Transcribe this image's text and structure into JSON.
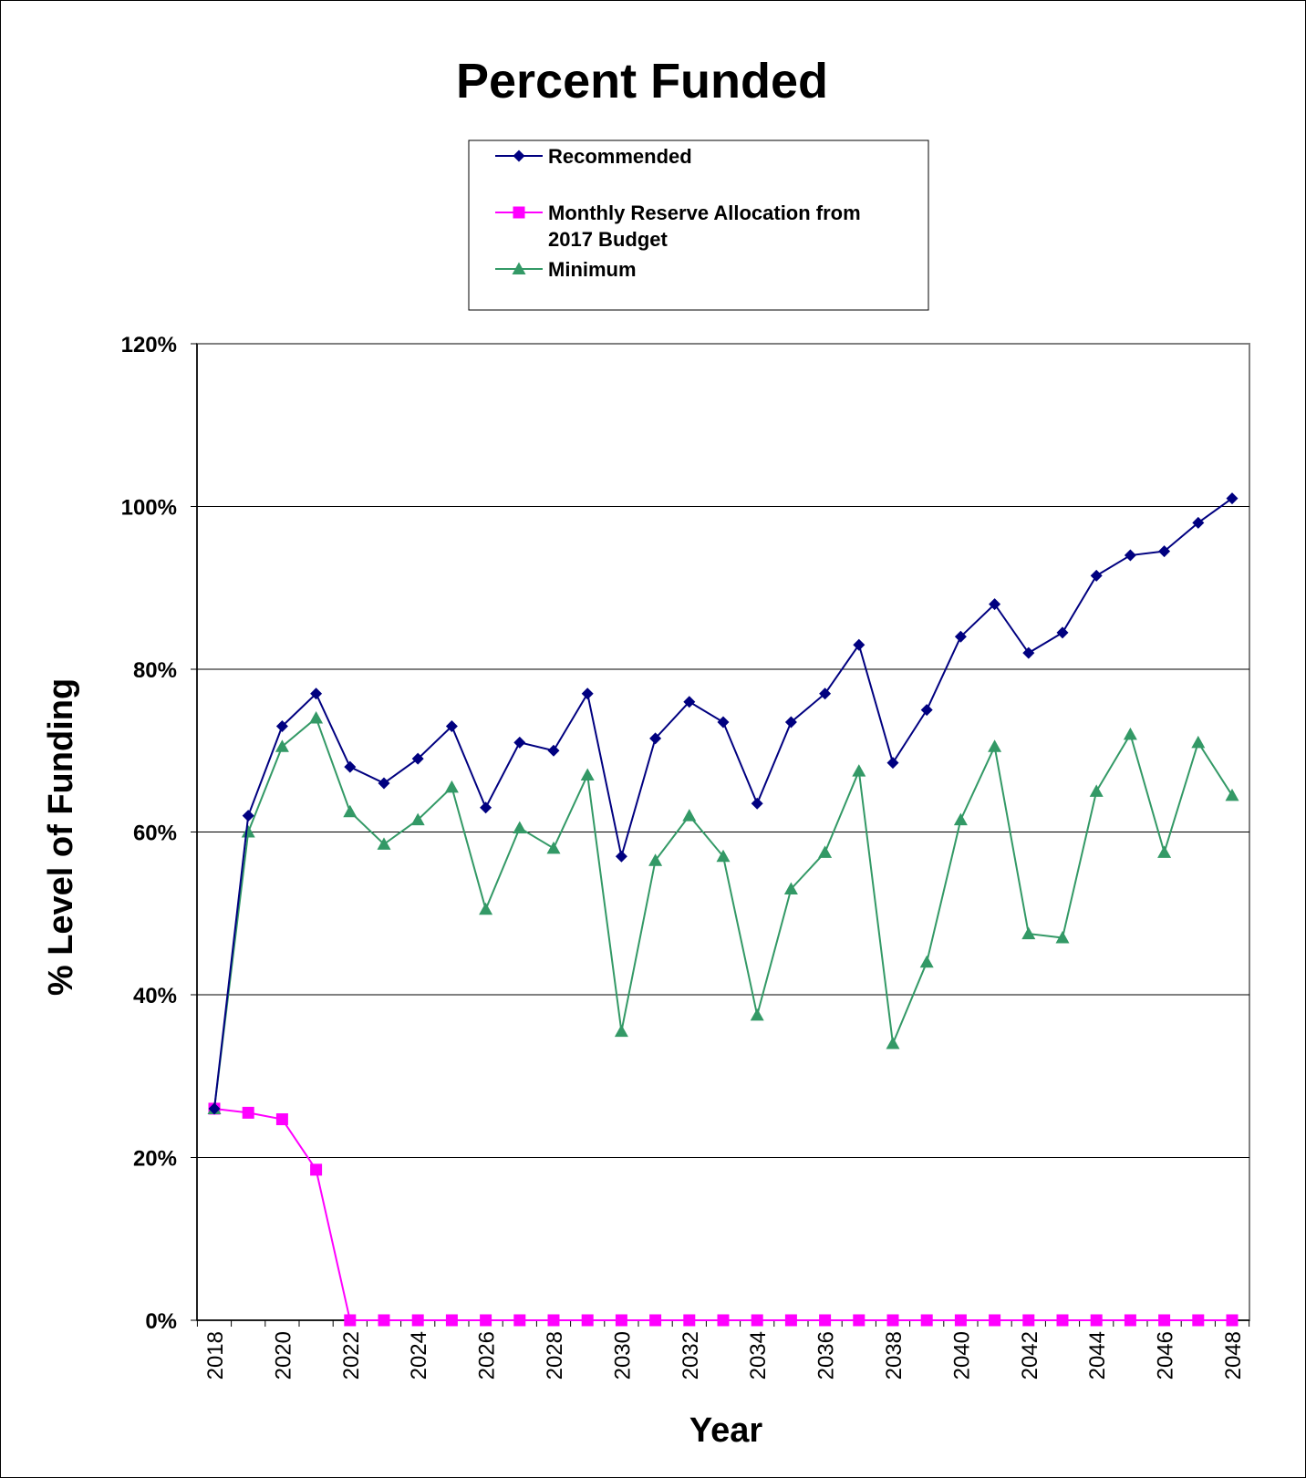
{
  "chart_data": {
    "type": "line",
    "title": "Percent Funded",
    "xlabel": "Year",
    "ylabel": "% Level of Funding",
    "ylim": [
      0,
      1.2
    ],
    "yticks": [
      "0%",
      "20%",
      "40%",
      "60%",
      "80%",
      "100%",
      "120%"
    ],
    "grid": "horizontal",
    "legend_position": "top-center",
    "x": [
      2018,
      2019,
      2020,
      2021,
      2022,
      2023,
      2024,
      2025,
      2026,
      2027,
      2028,
      2029,
      2030,
      2031,
      2032,
      2033,
      2034,
      2035,
      2036,
      2037,
      2038,
      2039,
      2040,
      2041,
      2042,
      2043,
      2044,
      2045,
      2046,
      2047,
      2048
    ],
    "xticks": [
      "2018",
      "2020",
      "2022",
      "2024",
      "2026",
      "2028",
      "2030",
      "2032",
      "2034",
      "2036",
      "2038",
      "2040",
      "2042",
      "2044",
      "2046",
      "2048"
    ],
    "series": [
      {
        "name": "Recommended",
        "color": "#000080",
        "marker": "diamond",
        "values": [
          0.26,
          0.62,
          0.73,
          0.77,
          0.68,
          0.66,
          0.69,
          0.73,
          0.63,
          0.71,
          0.7,
          0.77,
          0.57,
          0.715,
          0.76,
          0.735,
          0.635,
          0.735,
          0.77,
          0.83,
          0.685,
          0.75,
          0.84,
          0.88,
          0.82,
          0.845,
          0.915,
          0.94,
          0.945,
          0.98,
          1.01
        ]
      },
      {
        "name": "Monthly Reserve Allocation from 2017 Budget",
        "name_lines": [
          "Monthly Reserve Allocation from",
          "2017 Budget"
        ],
        "color": "#ff00ff",
        "marker": "square",
        "values": [
          0.26,
          0.255,
          0.247,
          0.185,
          0,
          0,
          0,
          0,
          0,
          0,
          0,
          0,
          0,
          0,
          0,
          0,
          0,
          0,
          0,
          0,
          0,
          0,
          0,
          0,
          0,
          0,
          0,
          0,
          0,
          0,
          0
        ]
      },
      {
        "name": "Minimum",
        "color": "#339966",
        "marker": "triangle",
        "values": [
          0.26,
          0.6,
          0.705,
          0.74,
          0.625,
          0.585,
          0.615,
          0.655,
          0.505,
          0.605,
          0.58,
          0.67,
          0.355,
          0.565,
          0.62,
          0.57,
          0.375,
          0.53,
          0.575,
          0.675,
          0.34,
          0.44,
          0.615,
          0.705,
          0.475,
          0.47,
          0.65,
          0.72,
          0.575,
          0.71,
          0.645
        ]
      }
    ]
  }
}
